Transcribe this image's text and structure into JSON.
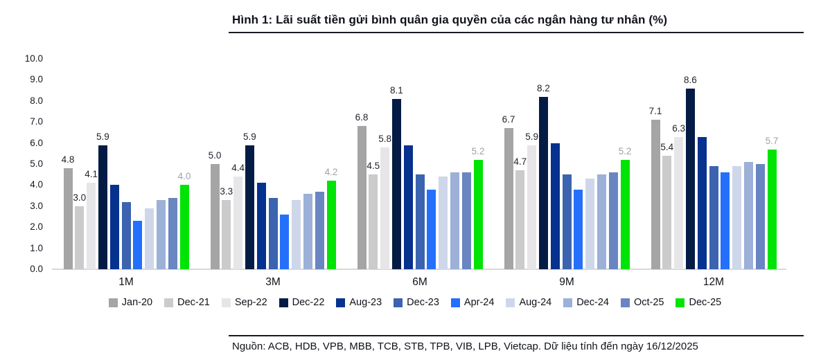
{
  "title": "Hình 1: Lãi suất tiền gửi bình quân gia quyền của các ngân hàng tư nhân (%)",
  "footer": "Nguồn: ACB, HDB, VPB, MBB, TCB, STB, TPB, VIB, LPB, Vietcap. Dữ liệu tính đến ngày 16/12/2025",
  "colors": {
    "axis_line": "#d8d8d8",
    "rule_line": "#171a22",
    "value_label_default": "#20242c",
    "value_label_muted": "#9aa2ab"
  },
  "chart_data": {
    "type": "bar",
    "title": "Hình 1: Lãi suất tiền gửi bình quân gia quyền của các ngân hàng tư nhân (%)",
    "xlabel": "",
    "ylabel": "",
    "ylim": [
      0,
      10
    ],
    "ytick_step": 1.0,
    "ytick_labels": [
      "0.0",
      "1.0",
      "2.0",
      "3.0",
      "4.0",
      "5.0",
      "6.0",
      "7.0",
      "8.0",
      "9.0",
      "10.0"
    ],
    "grid": false,
    "legend_position": "bottom",
    "categories": [
      "1M",
      "3M",
      "6M",
      "9M",
      "12M"
    ],
    "series": [
      {
        "name": "Jan-20",
        "color": "#a5a5a5",
        "labeled": true,
        "label_color": "#20242c",
        "values": [
          4.8,
          5.0,
          6.8,
          6.7,
          7.1
        ]
      },
      {
        "name": "Dec-21",
        "color": "#cbcbcb",
        "labeled": true,
        "label_color": "#20242c",
        "values": [
          3.0,
          3.3,
          4.5,
          4.7,
          5.4
        ]
      },
      {
        "name": "Sep-22",
        "color": "#e6e6e8",
        "labeled": true,
        "label_color": "#20242c",
        "values": [
          4.1,
          4.4,
          5.8,
          5.9,
          6.3
        ]
      },
      {
        "name": "Dec-22",
        "color": "#041c45",
        "labeled": true,
        "label_color": "#20242c",
        "values": [
          5.9,
          5.9,
          8.1,
          8.2,
          8.6
        ]
      },
      {
        "name": "Aug-23",
        "color": "#05318f",
        "labeled": false,
        "label_color": "#20242c",
        "values": [
          4.0,
          4.1,
          5.9,
          6.0,
          6.3
        ]
      },
      {
        "name": "Dec-23",
        "color": "#3b63b0",
        "labeled": false,
        "label_color": "#20242c",
        "values": [
          3.2,
          3.4,
          4.5,
          4.5,
          4.9
        ]
      },
      {
        "name": "Apr-24",
        "color": "#2470fb",
        "labeled": false,
        "label_color": "#20242c",
        "values": [
          2.3,
          2.6,
          3.8,
          3.8,
          4.6
        ]
      },
      {
        "name": "Aug-24",
        "color": "#ced7ea",
        "labeled": false,
        "label_color": "#20242c",
        "values": [
          2.9,
          3.3,
          4.4,
          4.3,
          4.9
        ]
      },
      {
        "name": "Dec-24",
        "color": "#9cb0d8",
        "labeled": false,
        "label_color": "#20242c",
        "values": [
          3.3,
          3.6,
          4.6,
          4.5,
          5.1
        ]
      },
      {
        "name": "Oct-25",
        "color": "#6985c2",
        "labeled": false,
        "label_color": "#20242c",
        "values": [
          3.4,
          3.7,
          4.6,
          4.6,
          5.0
        ]
      },
      {
        "name": "Dec-25",
        "color": "#00e405",
        "labeled": true,
        "label_color": "#9aa2ab",
        "values": [
          4.0,
          4.2,
          5.2,
          5.2,
          5.7
        ]
      }
    ]
  }
}
